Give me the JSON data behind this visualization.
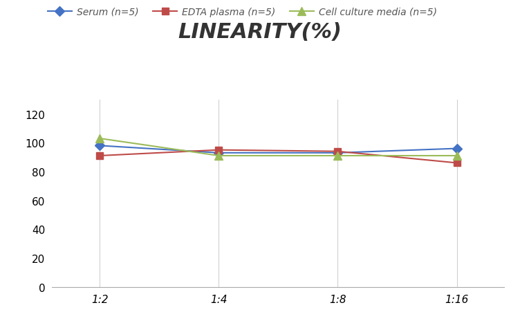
{
  "title": "LINEARITY(%)",
  "x_labels": [
    "1:2",
    "1:4",
    "1:8",
    "1:16"
  ],
  "x_positions": [
    0,
    1,
    2,
    3
  ],
  "series": [
    {
      "label": "Serum (n=5)",
      "values": [
        98,
        93,
        93,
        96
      ],
      "color": "#4472C4",
      "marker": "D",
      "marker_size": 7,
      "linewidth": 1.5
    },
    {
      "label": "EDTA plasma (n=5)",
      "values": [
        91,
        95,
        94,
        86
      ],
      "color": "#BE4B48",
      "marker": "s",
      "marker_size": 7,
      "linewidth": 1.5
    },
    {
      "label": "Cell culture media (n=5)",
      "values": [
        103,
        91,
        91,
        91
      ],
      "color": "#9BBB59",
      "marker": "^",
      "marker_size": 8,
      "linewidth": 1.5
    }
  ],
  "ylim": [
    0,
    130
  ],
  "yticks": [
    0,
    20,
    40,
    60,
    80,
    100,
    120
  ],
  "background_color": "#ffffff",
  "grid_color": "#d0d0d0",
  "title_fontsize": 22,
  "legend_fontsize": 10,
  "tick_fontsize": 11
}
